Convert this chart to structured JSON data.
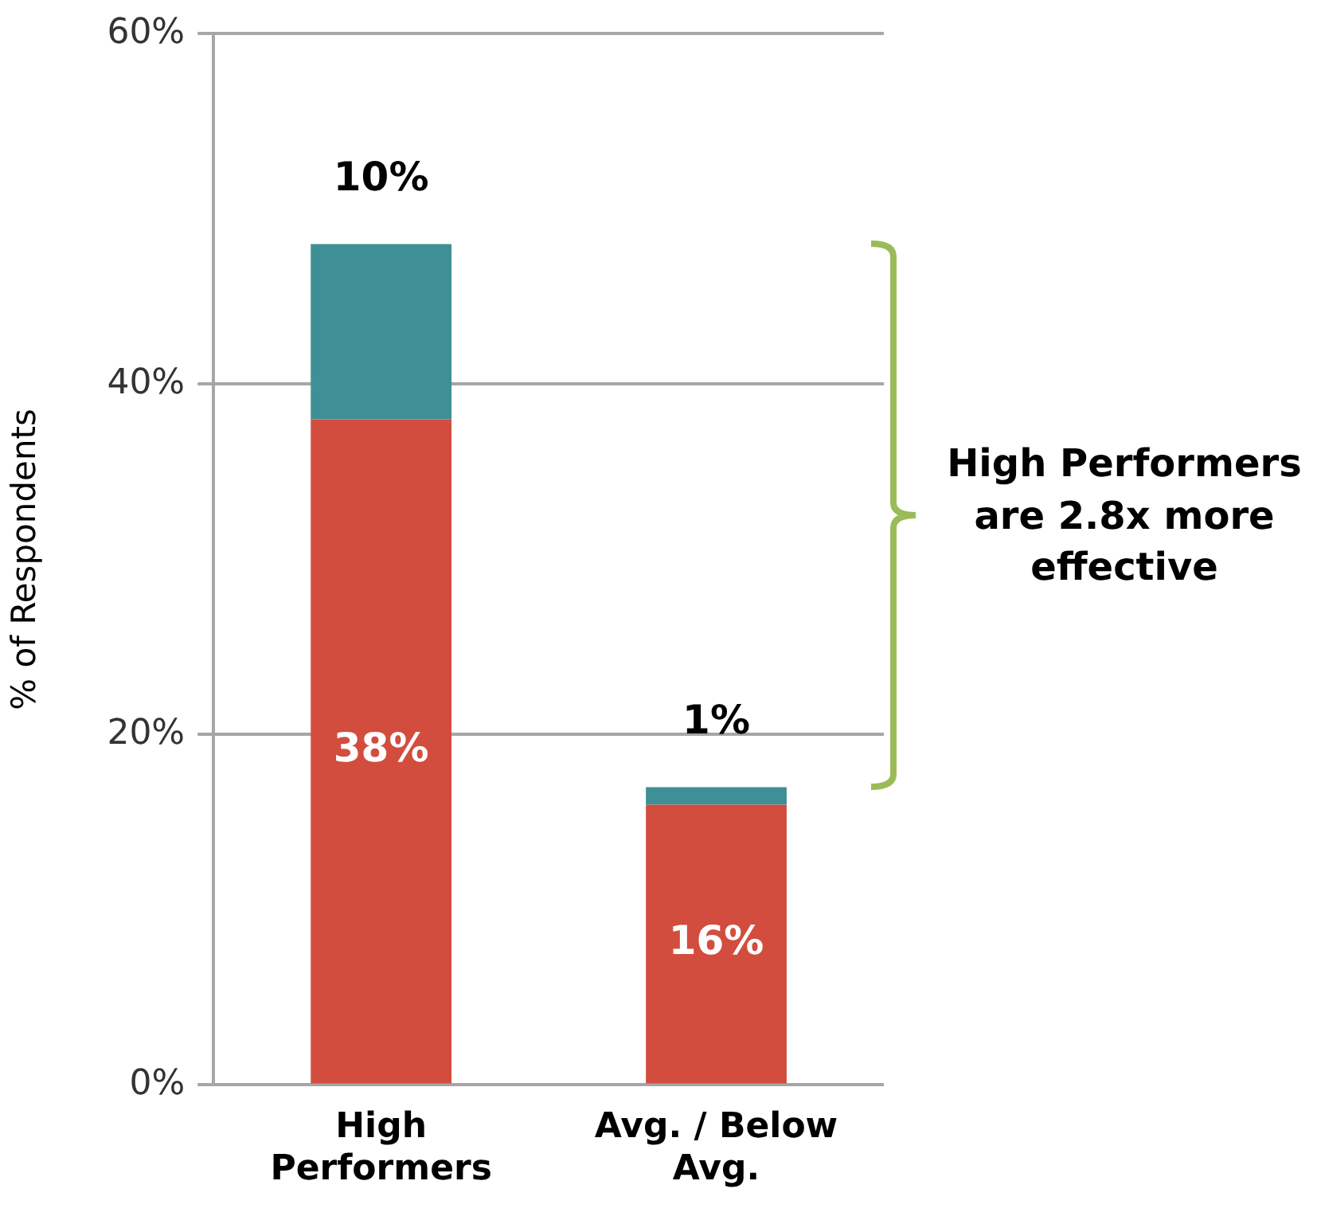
{
  "chart_data": {
    "type": "bar",
    "stacked": true,
    "categories": [
      "High Performers",
      "Avg. / Below Avg."
    ],
    "series": [
      {
        "color": "#d24d3e",
        "values": [
          38,
          16
        ],
        "value_labels": [
          "38%",
          "16%"
        ]
      },
      {
        "color": "#3e8f96",
        "values": [
          10,
          1
        ],
        "value_labels": [
          "10%",
          "1%"
        ]
      }
    ],
    "ylabel": "% of Respondents",
    "ylim": [
      0,
      60
    ],
    "yticks": [
      {
        "value": 0,
        "label": "0%"
      },
      {
        "value": 20,
        "label": "20%"
      },
      {
        "value": 40,
        "label": "40%"
      },
      {
        "value": 60,
        "label": "60%"
      }
    ],
    "grid": "y",
    "legend": false,
    "annotations": [
      "High Performers are 2.8x more effective"
    ]
  }
}
